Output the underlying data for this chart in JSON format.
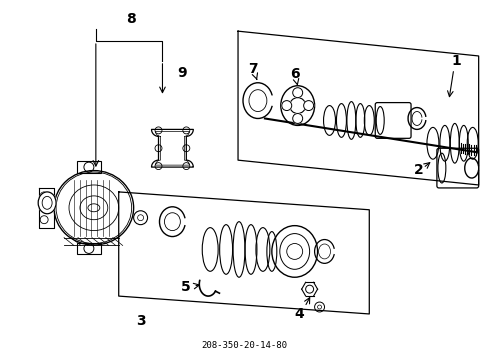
{
  "title": "208-350-20-14-80",
  "background_color": "#ffffff",
  "line_color": "#000000",
  "text_color": "#000000",
  "figure_width": 4.89,
  "figure_height": 3.6,
  "dpi": 100,
  "font_size": 9
}
